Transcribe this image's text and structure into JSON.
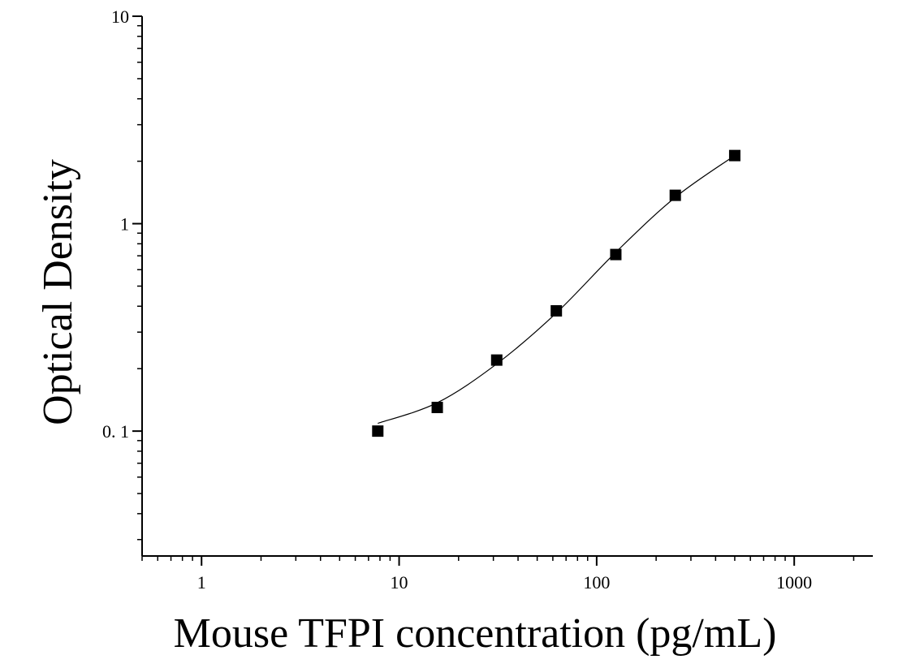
{
  "chart_data": {
    "type": "scatter",
    "xlabel": "Mouse TFPI concentration (pg/mL)",
    "ylabel": "Optical Density",
    "x_scale": "log",
    "y_scale": "log",
    "xlim": [
      0.5,
      2500
    ],
    "ylim": [
      0.025,
      10
    ],
    "x_ticks": [
      {
        "value": 1,
        "label": "1"
      },
      {
        "value": 10,
        "label": "10"
      },
      {
        "value": 100,
        "label": "100"
      },
      {
        "value": 1000,
        "label": "1000"
      }
    ],
    "y_ticks": [
      {
        "value": 0.1,
        "label": "0. 1"
      },
      {
        "value": 1,
        "label": "1"
      },
      {
        "value": 10,
        "label": "10"
      }
    ],
    "grid": false,
    "series": [
      {
        "marker": "square",
        "color": "#000000",
        "points": [
          {
            "x": 7.8,
            "y": 0.1
          },
          {
            "x": 15.6,
            "y": 0.13
          },
          {
            "x": 31.2,
            "y": 0.22
          },
          {
            "x": 62.5,
            "y": 0.38
          },
          {
            "x": 125,
            "y": 0.71
          },
          {
            "x": 250,
            "y": 1.37
          },
          {
            "x": 500,
            "y": 2.13
          }
        ]
      }
    ],
    "fit_curve": {
      "color": "#000000",
      "points": [
        {
          "x": 7.8,
          "y": 0.109
        },
        {
          "x": 15.6,
          "y": 0.137
        },
        {
          "x": 31.2,
          "y": 0.211
        },
        {
          "x": 62.5,
          "y": 0.371
        },
        {
          "x": 125,
          "y": 0.728
        },
        {
          "x": 250,
          "y": 1.34
        },
        {
          "x": 500,
          "y": 2.13
        }
      ]
    }
  }
}
